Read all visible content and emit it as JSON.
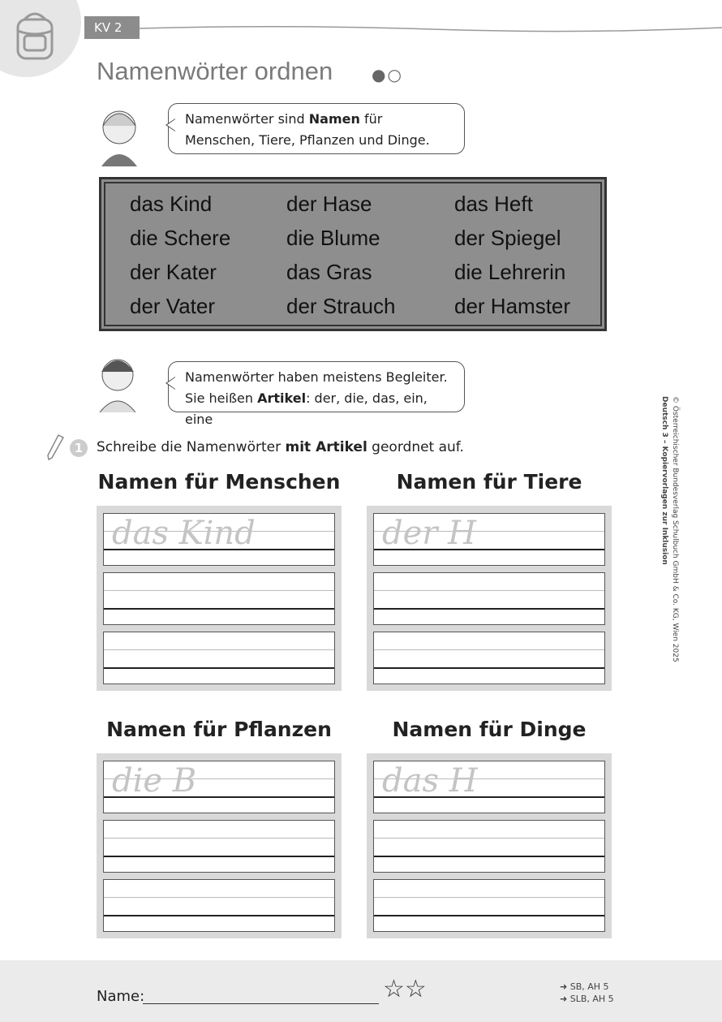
{
  "header": {
    "kv_label": "KV 2",
    "title": "Namenwörter ordnen",
    "difficulty_dots": "●○"
  },
  "bubble1": {
    "text_pre": "Namenwörter sind ",
    "bold": "Namen",
    "text_post": " für",
    "line2": "Menschen, Tiere, Pflanzen und Dinge."
  },
  "words": [
    [
      "das Kind",
      "die Schere",
      "der Kater",
      "der Vater"
    ],
    [
      "der Hase",
      "die Blume",
      "das Gras",
      "der Strauch"
    ],
    [
      "das Heft",
      "der Spiegel",
      "die Lehrerin",
      "der Hamster"
    ]
  ],
  "bubble2": {
    "line1": "Namenwörter haben meistens Begleiter.",
    "pre": "Sie heißen ",
    "bold": "Artikel",
    "post": ": der, die, das, ein, eine"
  },
  "task": {
    "number": "1",
    "pre": "Schreibe die Namenwörter ",
    "bold": "mit Artikel",
    "post": " geordnet auf."
  },
  "sections": [
    {
      "heading": "Namen für Menschen",
      "example": "das Kind"
    },
    {
      "heading": "Namen für Tiere",
      "example": "der H"
    },
    {
      "heading": "Namen für Pflanzen",
      "example": "die B"
    },
    {
      "heading": "Namen für Dinge",
      "example": "das H"
    }
  ],
  "copyright": {
    "line1": "© Österreichischer Bundesverlag Schulbuch GmbH & Co. KG, Wien 2025",
    "line2": "Deutsch 3 – Kopiervorlagen zur Inklusion"
  },
  "footer": {
    "name_label": "Name:",
    "stars": "☆☆",
    "ref1": "➜ SB, AH 5",
    "ref2": "➜ SLB, AH 5"
  }
}
